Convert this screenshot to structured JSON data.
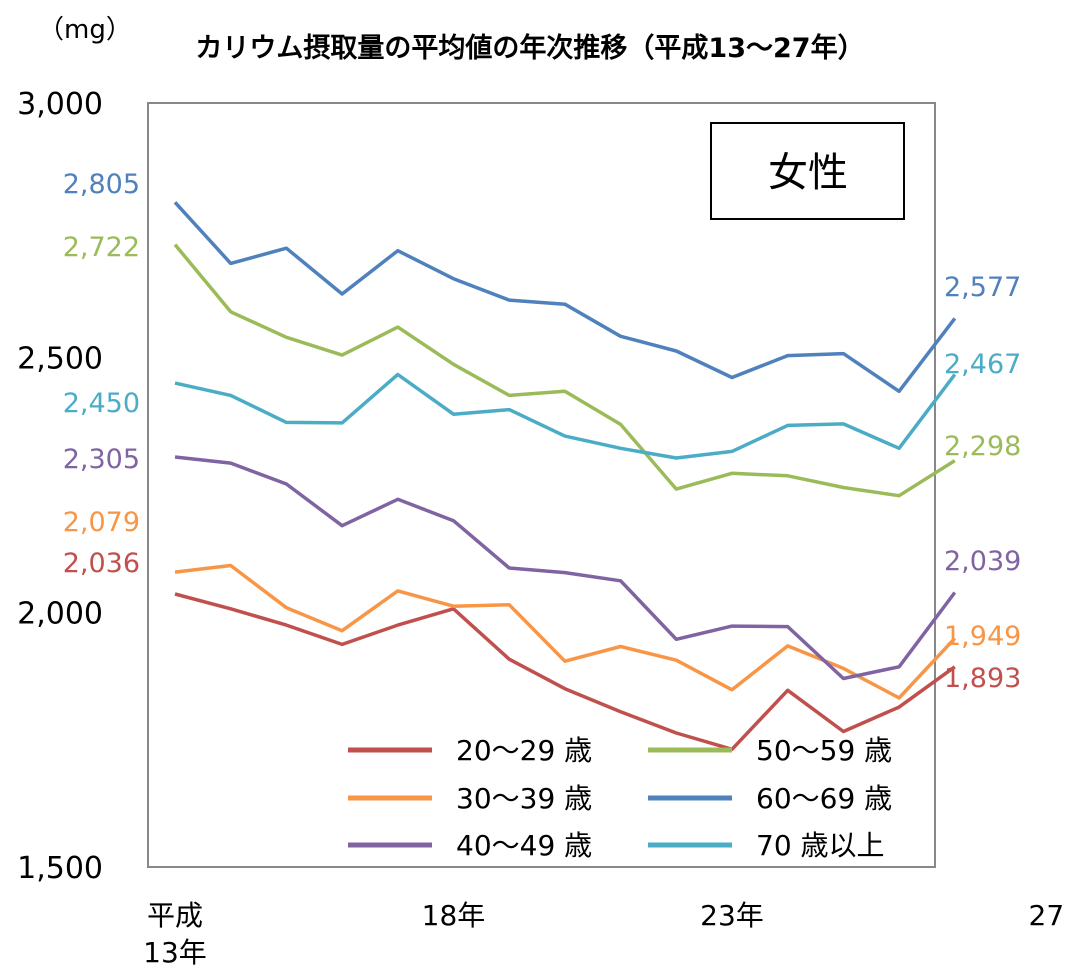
{
  "chart_data": {
    "type": "line",
    "title": "カリウム摂取量の平均値の年次推移（平成13〜27年）",
    "unit_label": "（mg）",
    "panel_label": "女性",
    "ylim": [
      1500,
      3000
    ],
    "yticks": [
      "3,000",
      "2,500",
      "2,000",
      "1,500"
    ],
    "ytick_values": [
      3000,
      2500,
      2000,
      1500
    ],
    "x": [
      13,
      14,
      15,
      16,
      17,
      18,
      19,
      20,
      21,
      22,
      23,
      24,
      25,
      26,
      27
    ],
    "xtick_labels": [
      {
        "x": 13,
        "lines": [
          "平成",
          "13年"
        ]
      },
      {
        "x": 18,
        "lines": [
          "18年"
        ]
      },
      {
        "x": 23,
        "lines": [
          "23年"
        ]
      },
      {
        "x": 27,
        "lines": [
          "27 年"
        ]
      }
    ],
    "grid": false,
    "legend_position": "bottom-right",
    "series": [
      {
        "name": "20〜29 歳",
        "color": "#c0504d",
        "start_label": "2,036",
        "end_label": "1,893",
        "values": [
          2036,
          2007,
          1975,
          1937,
          1975,
          2007,
          1908,
          1850,
          1805,
          1763,
          1731,
          1847,
          1766,
          1814,
          1893
        ]
      },
      {
        "name": "30〜39 歳",
        "color": "#f79646",
        "start_label": "2,079",
        "end_label": "1,949",
        "values": [
          2079,
          2092,
          2009,
          1964,
          2042,
          2012,
          2015,
          1904,
          1933,
          1906,
          1848,
          1934,
          1890,
          1832,
          1949
        ]
      },
      {
        "name": "40〜49 歳",
        "color": "#8064a2",
        "start_label": "2,305",
        "end_label": "2,039",
        "values": [
          2305,
          2293,
          2252,
          2170,
          2222,
          2180,
          2087,
          2078,
          2062,
          1947,
          1973,
          1972,
          1870,
          1893,
          2039
        ]
      },
      {
        "name": "50〜59 歳",
        "color": "#9bbb59",
        "start_label": "2,722",
        "end_label": "2,298",
        "values": [
          2722,
          2590,
          2540,
          2505,
          2560,
          2487,
          2426,
          2434,
          2369,
          2242,
          2273,
          2268,
          2245,
          2229,
          2298
        ]
      },
      {
        "name": "60〜69 歳",
        "color": "#4f81bd",
        "start_label": "2,805",
        "end_label": "2,577",
        "values": [
          2805,
          2685,
          2715,
          2625,
          2710,
          2655,
          2613,
          2605,
          2542,
          2513,
          2461,
          2504,
          2508,
          2434,
          2577
        ]
      },
      {
        "name": "70 歳以上",
        "color": "#4bacc6",
        "start_label": "2,450",
        "end_label": "2,467",
        "values": [
          2450,
          2426,
          2373,
          2372,
          2467,
          2389,
          2398,
          2346,
          2322,
          2303,
          2316,
          2367,
          2370,
          2322,
          2467
        ]
      }
    ],
    "legend_order": [
      0,
      3,
      1,
      4,
      2,
      5
    ]
  }
}
